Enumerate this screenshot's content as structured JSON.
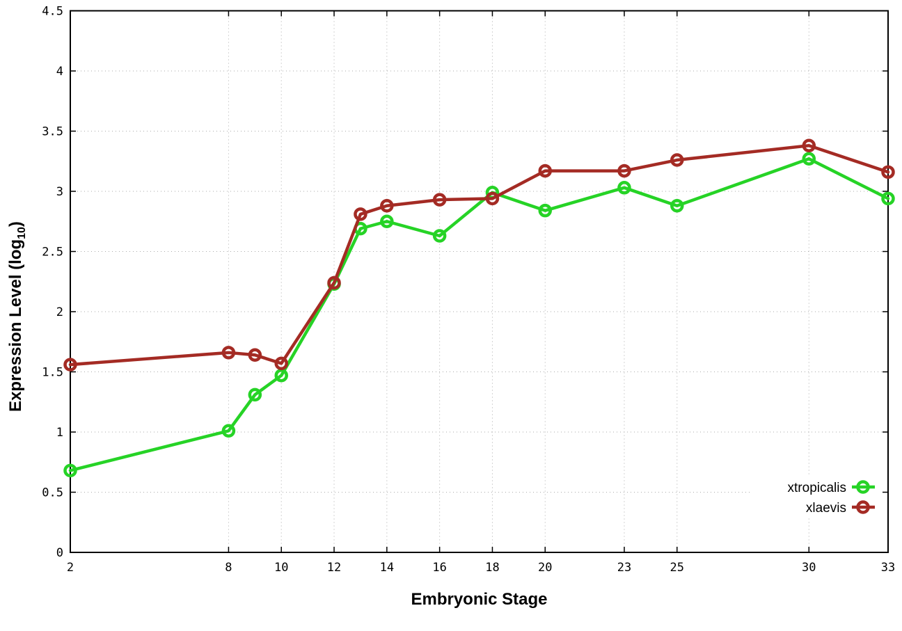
{
  "chart_data": {
    "type": "line",
    "title": "",
    "xlabel": "Embryonic Stage",
    "ylabel": "Expression Level (log10)",
    "ylabel_parts": {
      "main": "Expression Level (log",
      "sub": "10",
      "close": ")"
    },
    "xlim": [
      2,
      33
    ],
    "ylim": [
      0,
      4.5
    ],
    "xticks": [
      2,
      8,
      10,
      12,
      14,
      16,
      18,
      20,
      23,
      25,
      30,
      33
    ],
    "yticks": [
      0,
      0.5,
      1,
      1.5,
      2,
      2.5,
      3,
      3.5,
      4,
      4.5
    ],
    "grid": true,
    "legend_position": "inside-bottom-right",
    "x": [
      2,
      8,
      9,
      10,
      12,
      13,
      14,
      16,
      18,
      20,
      23,
      25,
      30,
      33
    ],
    "series": [
      {
        "name": "xtropicalis",
        "color": "#26d326",
        "marker": "open-circle",
        "values": [
          0.68,
          1.01,
          1.31,
          1.47,
          2.23,
          2.69,
          2.75,
          2.63,
          2.99,
          2.84,
          3.03,
          2.88,
          3.27,
          2.94
        ]
      },
      {
        "name": "xlaevis",
        "color": "#a42b24",
        "marker": "open-circle",
        "values": [
          1.56,
          1.66,
          1.64,
          1.57,
          2.24,
          2.81,
          2.88,
          2.93,
          2.94,
          3.17,
          3.17,
          3.26,
          3.38,
          3.16
        ]
      }
    ],
    "style": {
      "background": "#ffffff",
      "border_color": "#000000",
      "grid_color": "#aaaaaa",
      "line_width": 4.5,
      "marker_radius": 7.5,
      "marker_stroke": 4.5
    }
  }
}
